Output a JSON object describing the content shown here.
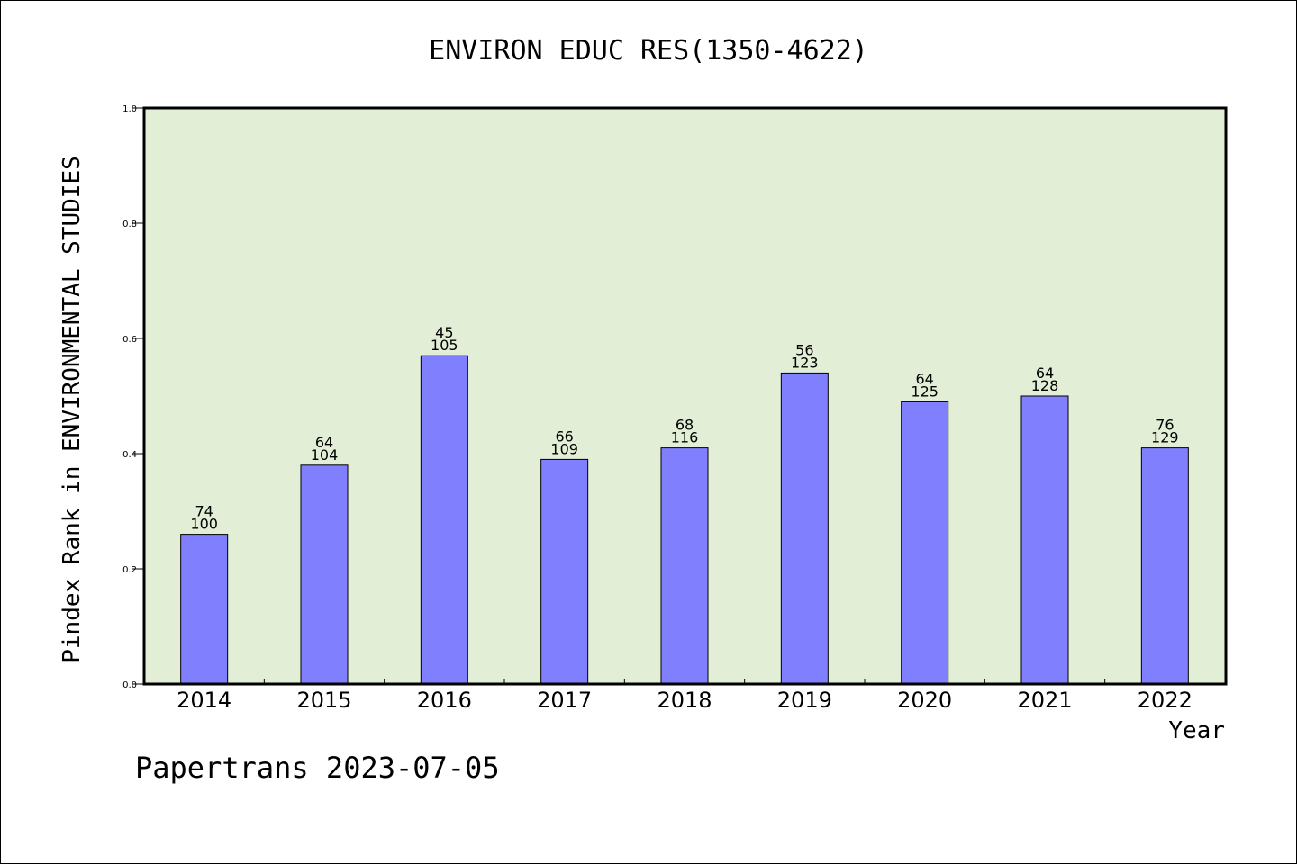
{
  "chart_data": {
    "type": "bar",
    "title": "ENVIRON EDUC RES(1350-4622)",
    "xlabel": "Year",
    "ylabel": "Pindex Rank in ENVIRONMENTAL STUDIES",
    "ylim": [
      0,
      1.0
    ],
    "yticks": [
      "0.0",
      "0.2",
      "0.4",
      "0.6",
      "0.8",
      "1.0"
    ],
    "categories": [
      "2014",
      "2015",
      "2016",
      "2017",
      "2018",
      "2019",
      "2020",
      "2021",
      "2022"
    ],
    "values": [
      0.26,
      0.38,
      0.57,
      0.39,
      0.41,
      0.54,
      0.49,
      0.5,
      0.41
    ],
    "label_top": [
      "74",
      "64",
      "45",
      "66",
      "68",
      "56",
      "64",
      "64",
      "76"
    ],
    "label_bottom": [
      "100",
      "104",
      "105",
      "109",
      "116",
      "123",
      "125",
      "128",
      "129"
    ],
    "grid": false,
    "colors": {
      "plot_background": "#e2efd6",
      "bar_fill": "#8080ff",
      "bar_stroke": "#000000"
    }
  },
  "footer": {
    "credit": "Papertrans 2023-07-05"
  }
}
